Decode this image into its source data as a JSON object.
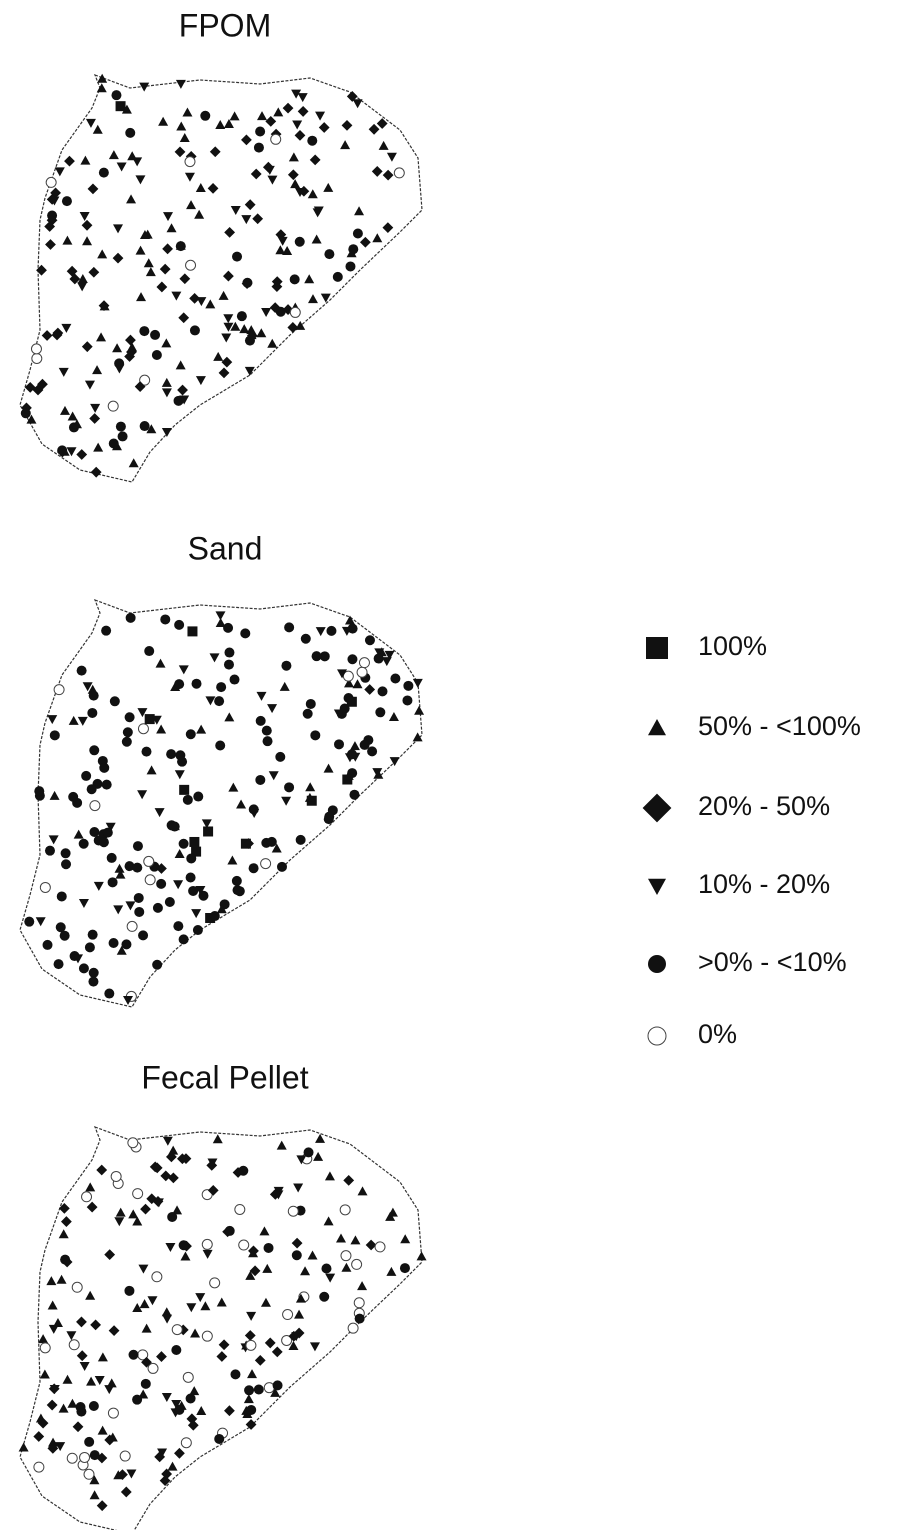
{
  "panels": [
    {
      "title": "FPOM"
    },
    {
      "title": "Sand"
    },
    {
      "title": "Fecal Pellet"
    }
  ],
  "legend": {
    "items": [
      {
        "label": "100%",
        "symbol": "square"
      },
      {
        "label": "50% - <100%",
        "symbol": "triangle-up"
      },
      {
        "label": "20% - 50%",
        "symbol": "diamond"
      },
      {
        "label": "10% - 20%",
        "symbol": "triangle-down"
      },
      {
        "label": ">0% - <10%",
        "symbol": "circle"
      },
      {
        "label": "0%",
        "symbol": "circle-open"
      }
    ]
  }
}
